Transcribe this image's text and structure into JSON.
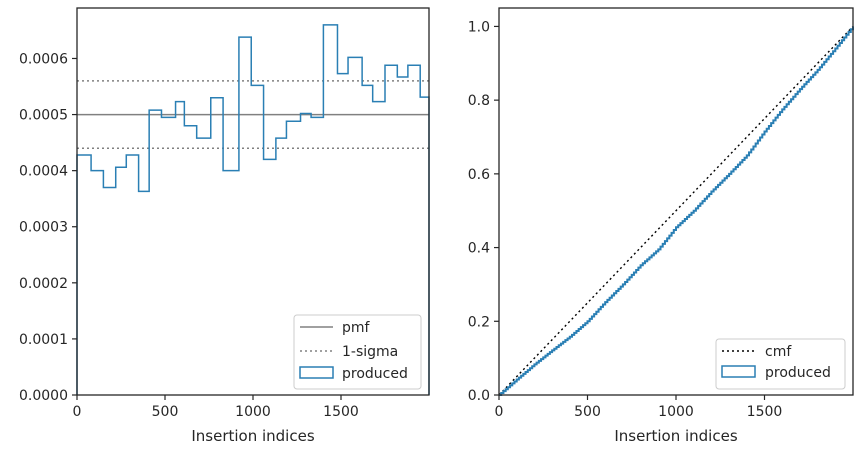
{
  "chart_data": [
    {
      "type": "step",
      "xlabel": "Insertion indices",
      "ylabel": "",
      "xlim": [
        0,
        2000
      ],
      "ylim": [
        0,
        0.00069
      ],
      "xticks": [
        0,
        500,
        1000,
        1500
      ],
      "xtick_labels": [
        "0",
        "500",
        "1000",
        "1500"
      ],
      "yticks": [
        0,
        0.0001,
        0.0002,
        0.0003,
        0.0004,
        0.0005,
        0.0006
      ],
      "ytick_labels": [
        "0.0000",
        "0.0001",
        "0.0002",
        "0.0003",
        "0.0004",
        "0.0005",
        "0.0006"
      ],
      "grid": false,
      "legend_position": "bottom-right",
      "lines": [
        {
          "name": "pmf",
          "y": 0.0005,
          "color": "#808080",
          "style": "solid"
        },
        {
          "name": "1-sigma",
          "y": 0.00044,
          "color": "#808080",
          "style": "dotted"
        },
        {
          "name": "1-sigma",
          "y": 0.00056,
          "color": "#808080",
          "style": "dotted"
        }
      ],
      "series": [
        {
          "name": "produced",
          "color": "#2a7fb4",
          "bin_edges": [
            0,
            80,
            150,
            220,
            280,
            350,
            410,
            480,
            560,
            610,
            680,
            760,
            830,
            920,
            990,
            1060,
            1130,
            1190,
            1270,
            1330,
            1400,
            1480,
            1540,
            1620,
            1680,
            1750,
            1820,
            1880,
            1950,
            2000
          ],
          "values": [
            0.000428,
            0.0004,
            0.00037,
            0.000406,
            0.000428,
            0.000363,
            0.000508,
            0.000495,
            0.000523,
            0.00048,
            0.000458,
            0.00053,
            0.0004,
            0.000638,
            0.000552,
            0.00042,
            0.000458,
            0.000488,
            0.000502,
            0.000495,
            0.00066,
            0.000573,
            0.000602,
            0.000552,
            0.000523,
            0.000588,
            0.000567,
            0.000588,
            0.000531
          ]
        }
      ]
    },
    {
      "type": "step",
      "xlabel": "Insertion indices",
      "ylabel": "",
      "xlim": [
        0,
        2000
      ],
      "ylim": [
        0,
        1.05
      ],
      "xticks": [
        0,
        500,
        1000,
        1500
      ],
      "xtick_labels": [
        "0",
        "500",
        "1000",
        "1500"
      ],
      "yticks": [
        0,
        0.2,
        0.4,
        0.6,
        0.8,
        1.0
      ],
      "ytick_labels": [
        "0.0",
        "0.2",
        "0.4",
        "0.6",
        "0.8",
        "1.0"
      ],
      "grid": false,
      "legend_position": "bottom-right",
      "lines": [
        {
          "name": "cmf",
          "x": [
            0,
            2000
          ],
          "y": [
            0,
            1
          ],
          "color": "#000000",
          "style": "dotted"
        }
      ],
      "series": [
        {
          "name": "produced",
          "color": "#2a7fb4",
          "x": [
            0,
            100,
            200,
            300,
            400,
            500,
            600,
            700,
            800,
            900,
            1000,
            1100,
            1200,
            1300,
            1400,
            1500,
            1600,
            1700,
            1800,
            1900,
            2000
          ],
          "y": [
            0,
            0.042,
            0.083,
            0.121,
            0.158,
            0.2,
            0.252,
            0.3,
            0.352,
            0.395,
            0.455,
            0.5,
            0.552,
            0.6,
            0.65,
            0.715,
            0.775,
            0.83,
            0.882,
            0.94,
            1.0
          ]
        }
      ]
    }
  ],
  "legend_left": {
    "pmf": "pmf",
    "sigma": "1-sigma",
    "produced": "produced"
  },
  "legend_right": {
    "cmf": "cmf",
    "produced": "produced"
  },
  "colors": {
    "pmf": "#808080",
    "produced": "#2a7fb4",
    "cmf": "#000000",
    "frame": "#262626"
  }
}
